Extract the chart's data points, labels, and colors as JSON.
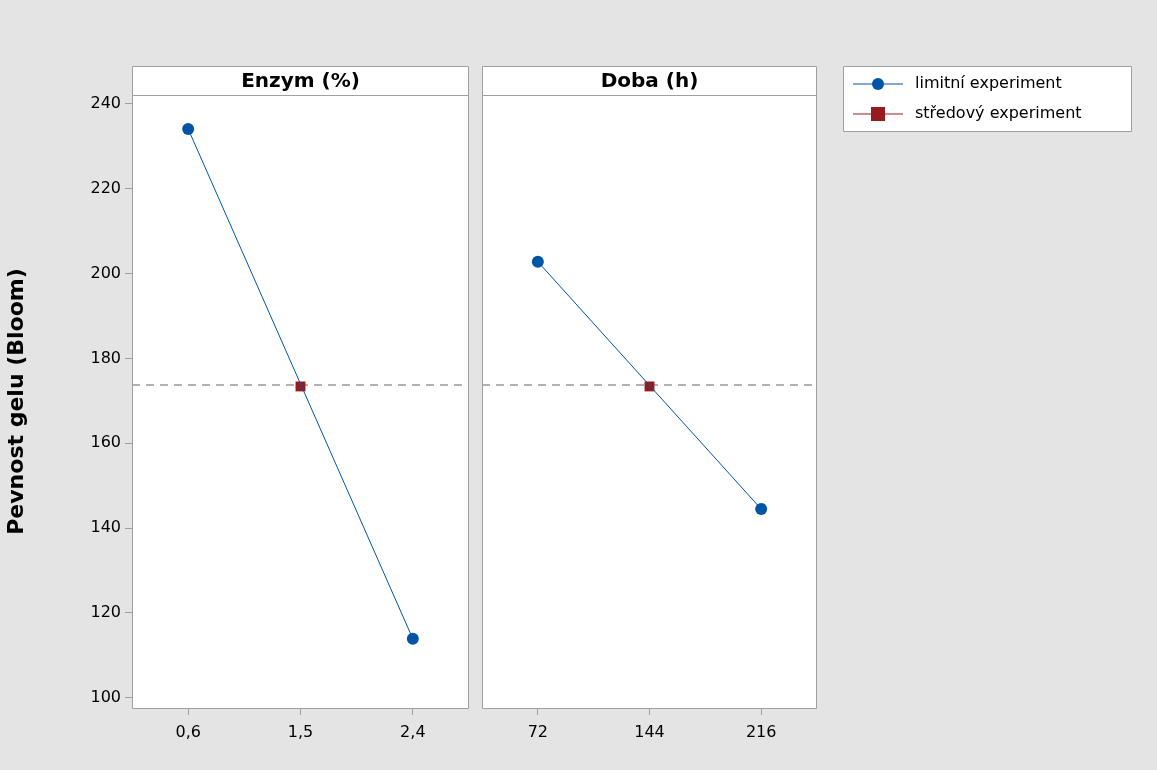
{
  "chart_data": [
    {
      "type": "line",
      "title": "Enzym (%)",
      "ylabel": "Pevnost gelu (Bloom)",
      "categories": [
        "0,6",
        "1,5",
        "2,4"
      ],
      "series": [
        {
          "color": "#0054a6",
          "values": [
            234.1,
            null,
            113.9
          ],
          "marker": "circle"
        },
        {
          "color": "#951b1e",
          "values": [
            null,
            173.4,
            null
          ],
          "marker": "square"
        }
      ],
      "ylim": [
        97.6,
        242.1
      ],
      "yticks": [
        100,
        120,
        140,
        160,
        180,
        200,
        220,
        240
      ],
      "ref_lines": [
        {
          "axis": "y",
          "value": 173.75,
          "color": "#999999",
          "line_style": "dashed"
        }
      ],
      "grid": false,
      "legend": false
    },
    {
      "type": "line",
      "title": "Doba (h)",
      "categories": [
        "72",
        "144",
        "216"
      ],
      "series": [
        {
          "name": "limitní experiment",
          "color": "#0054a6",
          "values": [
            202.8,
            null,
            144.5
          ],
          "marker": "circle"
        },
        {
          "name": "středový experiment",
          "color": "#951b1e",
          "values": [
            null,
            173.4,
            null
          ],
          "marker": "square"
        }
      ],
      "ylim": [
        97.6,
        242.1
      ],
      "yticks": [
        100,
        120,
        140,
        160,
        180,
        200,
        220,
        240
      ],
      "ref_lines": [
        {
          "axis": "y",
          "value": 173.75,
          "color": "#999999",
          "line_style": "dashed"
        }
      ],
      "grid": false,
      "legend": "right",
      "tick_labels": "x"
    }
  ]
}
